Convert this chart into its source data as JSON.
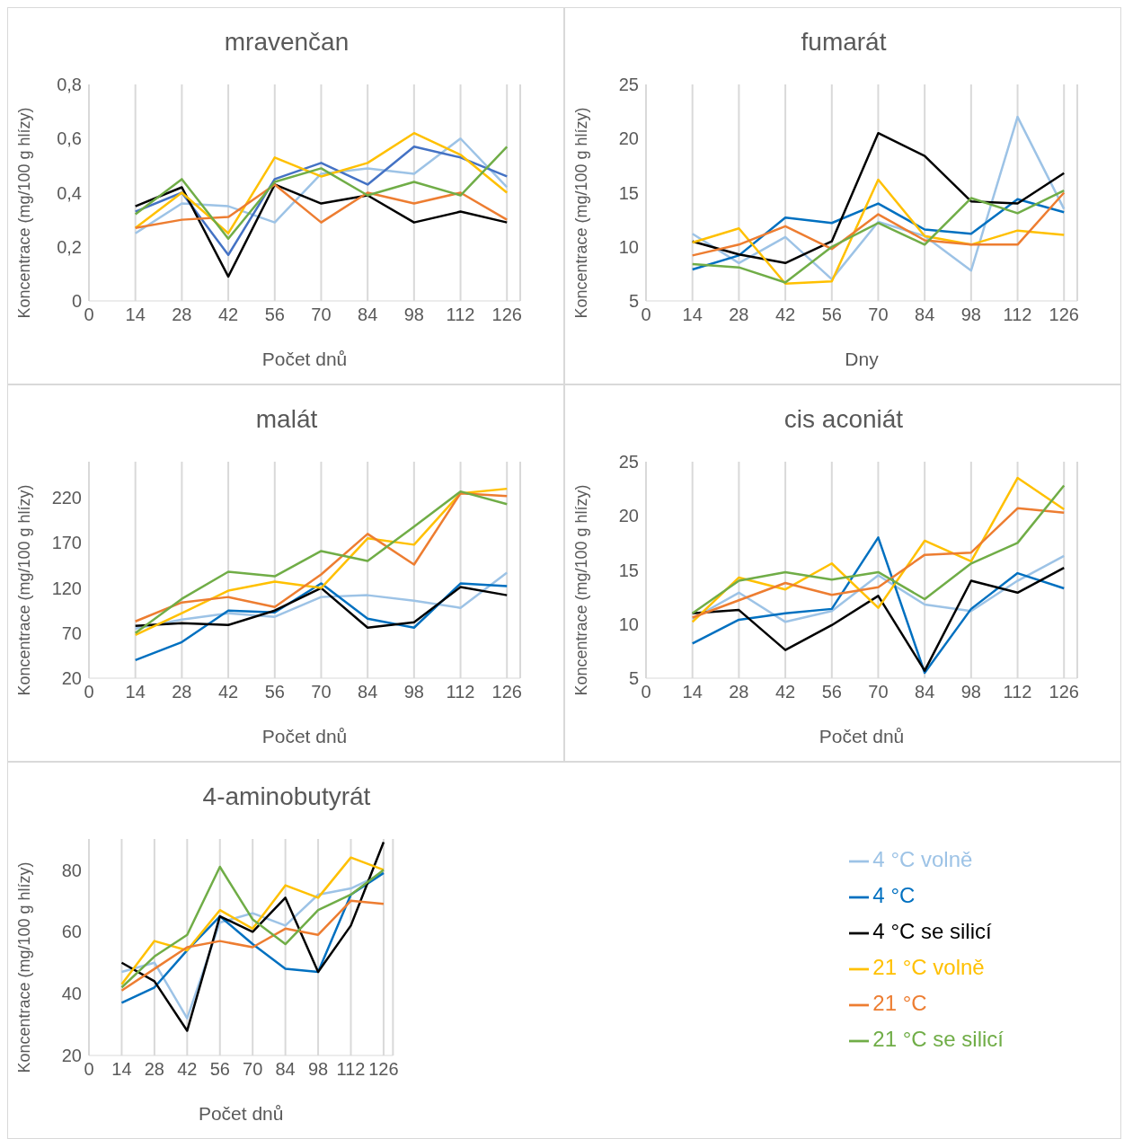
{
  "chart_data": [
    {
      "type": "line",
      "title": "mravenčan",
      "xlabel": "Počet dnů",
      "ylabel": "Koncentrace (mg/100 g hlízy)",
      "x": [
        14,
        28,
        42,
        56,
        70,
        84,
        98,
        112,
        126
      ],
      "xlim": [
        0,
        130
      ],
      "xticks": [
        0,
        14,
        28,
        42,
        56,
        70,
        84,
        98,
        112,
        126
      ],
      "ylim": [
        0,
        0.8
      ],
      "yticks": [
        0,
        {
          "value": 0.2,
          "label": "0,2"
        },
        {
          "value": 0.4,
          "label": "0,4"
        },
        {
          "value": 0.6,
          "label": "0,6"
        },
        {
          "value": 0.8,
          "label": "0,8"
        }
      ],
      "grid": "x",
      "legend": false,
      "series": [
        {
          "color": "#9dc3e6",
          "values": [
            0.25,
            0.36,
            0.35,
            0.29,
            0.47,
            0.49,
            0.47,
            0.6,
            0.42
          ]
        },
        {
          "color": "#4472c4",
          "values": [
            0.33,
            0.4,
            0.17,
            0.45,
            0.51,
            0.43,
            0.57,
            0.53,
            0.46
          ]
        },
        {
          "color": "#000000",
          "values": [
            0.35,
            0.42,
            0.09,
            0.43,
            0.36,
            0.39,
            0.29,
            0.33,
            0.29
          ]
        },
        {
          "color": "#ffc000",
          "values": [
            0.27,
            0.4,
            0.25,
            0.53,
            0.46,
            0.51,
            0.62,
            0.54,
            0.4
          ]
        },
        {
          "color": "#ed7d31",
          "values": [
            0.27,
            0.3,
            0.31,
            0.43,
            0.29,
            0.4,
            0.36,
            0.4,
            0.3
          ]
        },
        {
          "color": "#70ad47",
          "values": [
            0.32,
            0.45,
            0.23,
            0.44,
            0.49,
            0.39,
            0.44,
            0.39,
            0.57
          ]
        }
      ]
    },
    {
      "type": "line",
      "title": "fumarát",
      "xlabel": "Dny",
      "ylabel": "Koncentrace (mg/100 g hlízy)",
      "x": [
        14,
        28,
        42,
        56,
        70,
        84,
        98,
        112,
        126
      ],
      "xlim": [
        0,
        130
      ],
      "xticks": [
        0,
        14,
        28,
        42,
        56,
        70,
        84,
        98,
        112,
        126
      ],
      "ylim": [
        5,
        25
      ],
      "yticks": [
        5,
        10,
        15,
        20,
        25
      ],
      "grid": "x",
      "legend": false,
      "series": [
        {
          "color": "#9dc3e6",
          "values": [
            11.2,
            8.5,
            10.9,
            7.0,
            12.3,
            11.0,
            7.8,
            22.0,
            13.5
          ]
        },
        {
          "color": "#0070c0",
          "values": [
            7.9,
            9.2,
            12.7,
            12.2,
            14.0,
            11.6,
            11.2,
            14.4,
            13.2
          ]
        },
        {
          "color": "#000000",
          "values": [
            10.5,
            9.3,
            8.5,
            10.5,
            20.5,
            18.4,
            14.2,
            14.0,
            16.8
          ]
        },
        {
          "color": "#ffc000",
          "values": [
            10.4,
            11.7,
            6.6,
            6.8,
            16.2,
            11.0,
            10.2,
            11.5,
            11.1
          ]
        },
        {
          "color": "#ed7d31",
          "values": [
            9.2,
            10.2,
            11.9,
            9.8,
            13.0,
            10.6,
            10.2,
            10.2,
            15.0
          ]
        },
        {
          "color": "#70ad47",
          "values": [
            8.4,
            8.1,
            6.7,
            10.0,
            12.2,
            10.2,
            14.5,
            13.1,
            15.2
          ]
        }
      ]
    },
    {
      "type": "line",
      "title": "malát",
      "xlabel": "Počet dnů",
      "ylabel": "Koncentrace (mg/100 g hlízy)",
      "x": [
        14,
        28,
        42,
        56,
        70,
        84,
        98,
        112,
        126
      ],
      "xlim": [
        0,
        130
      ],
      "xticks": [
        0,
        14,
        28,
        42,
        56,
        70,
        84,
        98,
        112,
        126
      ],
      "ylim": [
        20,
        260
      ],
      "yticks": [
        20,
        70,
        120,
        170,
        220
      ],
      "grid": "x",
      "legend": false,
      "series": [
        {
          "color": "#9dc3e6",
          "values": [
            75,
            85,
            92,
            88,
            110,
            112,
            106,
            98,
            137
          ]
        },
        {
          "color": "#0070c0",
          "values": [
            40,
            60,
            95,
            93,
            125,
            86,
            76,
            125,
            122
          ]
        },
        {
          "color": "#000000",
          "values": [
            78,
            81,
            79,
            95,
            120,
            76,
            82,
            121,
            112
          ]
        },
        {
          "color": "#ffc000",
          "values": [
            68,
            92,
            117,
            127,
            120,
            175,
            168,
            225,
            230
          ]
        },
        {
          "color": "#ed7d31",
          "values": [
            83,
            104,
            110,
            99,
            135,
            180,
            146,
            225,
            222
          ]
        },
        {
          "color": "#70ad47",
          "values": [
            70,
            108,
            138,
            133,
            161,
            150,
            188,
            227,
            213
          ]
        }
      ]
    },
    {
      "type": "line",
      "title": "cis aconiát",
      "xlabel": "Počet dnů",
      "ylabel": "Koncentrace (mg/100 g hlízy)",
      "x": [
        14,
        28,
        42,
        56,
        70,
        84,
        98,
        112,
        126
      ],
      "xlim": [
        0,
        130
      ],
      "xticks": [
        0,
        14,
        28,
        42,
        56,
        70,
        84,
        98,
        112,
        126
      ],
      "ylim": [
        5,
        25
      ],
      "yticks": [
        5,
        10,
        15,
        20,
        25
      ],
      "grid": "x",
      "legend": false,
      "series": [
        {
          "color": "#9dc3e6",
          "values": [
            10.5,
            12.9,
            10.2,
            11.2,
            14.5,
            11.8,
            11.2,
            14.0,
            16.3
          ]
        },
        {
          "color": "#0070c0",
          "values": [
            8.2,
            10.4,
            11.0,
            11.4,
            18.0,
            5.5,
            11.4,
            14.7,
            13.3
          ]
        },
        {
          "color": "#000000",
          "values": [
            11.0,
            11.3,
            7.6,
            9.9,
            12.6,
            5.7,
            14.0,
            12.9,
            15.2
          ]
        },
        {
          "color": "#ffc000",
          "values": [
            10.2,
            14.3,
            13.2,
            15.6,
            11.5,
            17.7,
            15.8,
            23.5,
            20.6
          ]
        },
        {
          "color": "#ed7d31",
          "values": [
            10.6,
            12.2,
            13.8,
            12.7,
            13.4,
            16.4,
            16.6,
            20.7,
            20.3
          ]
        },
        {
          "color": "#70ad47",
          "values": [
            11.0,
            14.0,
            14.8,
            14.1,
            14.8,
            12.3,
            15.6,
            17.5,
            22.8
          ]
        }
      ]
    },
    {
      "type": "line",
      "title": "4-aminobutyrát",
      "xlabel": "Počet dnů",
      "ylabel": "Koncentrace (mg/100 g hlízy)",
      "x": [
        14,
        28,
        42,
        56,
        70,
        84,
        98,
        112,
        126
      ],
      "xlim": [
        0,
        130
      ],
      "xticks": [
        0,
        14,
        28,
        42,
        56,
        70,
        84,
        98,
        112,
        126
      ],
      "ylim": [
        20,
        90
      ],
      "yticks": [
        20,
        40,
        60,
        80
      ],
      "grid": "x",
      "legend": "right",
      "series": [
        {
          "name": "4 °C volně",
          "color": "#9dc3e6",
          "values": [
            47,
            50,
            32,
            63,
            66,
            62,
            72,
            74,
            79
          ]
        },
        {
          "name": "4 °C",
          "color": "#0070c0",
          "values": [
            37,
            42,
            54,
            65,
            56,
            48,
            47,
            72,
            79
          ]
        },
        {
          "name": "4 °C se silicí",
          "color": "#000000",
          "values": [
            50,
            44,
            28,
            65,
            60,
            71,
            47,
            62,
            89
          ]
        },
        {
          "name": "21 °C volně",
          "color": "#ffc000",
          "values": [
            43,
            57,
            54,
            67,
            61,
            75,
            71,
            84,
            80
          ]
        },
        {
          "name": "21 °C",
          "color": "#ed7d31",
          "values": [
            41,
            48,
            55,
            57,
            55,
            61,
            59,
            70,
            69
          ]
        },
        {
          "name": "21 °C se silicí",
          "color": "#70ad47",
          "values": [
            42,
            52,
            59,
            81,
            64,
            56,
            67,
            72,
            80
          ]
        }
      ]
    }
  ]
}
